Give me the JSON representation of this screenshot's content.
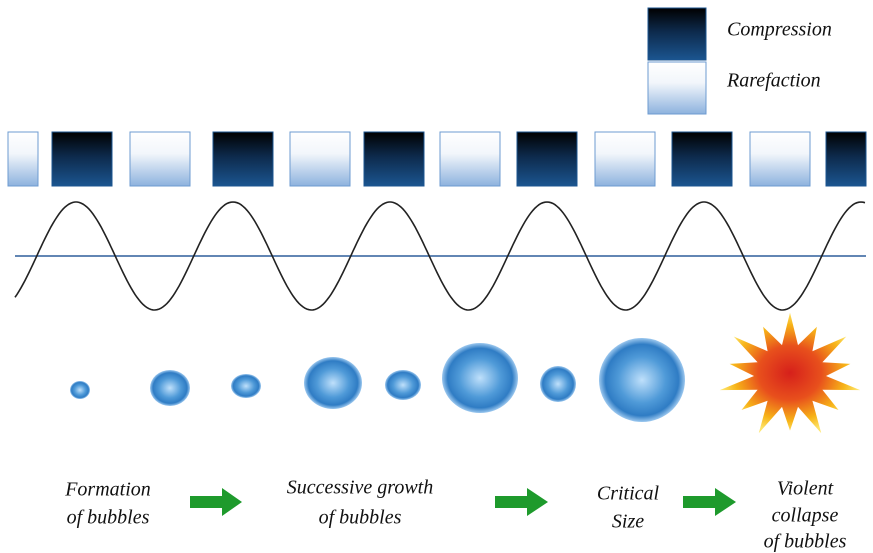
{
  "legend": {
    "compression": "Compression",
    "rarefaction": "Rarefaction"
  },
  "stages": [
    {
      "lines": [
        "Formation",
        "of bubbles"
      ]
    },
    {
      "lines": [
        "Successive growth",
        "of bubbles"
      ]
    },
    {
      "lines": [
        "Critical",
        "Size"
      ]
    },
    {
      "lines": [
        "Violent",
        "collapse",
        "of bubbles"
      ]
    }
  ]
}
